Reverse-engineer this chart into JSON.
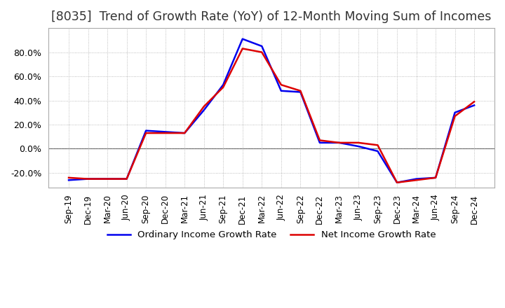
{
  "title": "[8035]  Trend of Growth Rate (YoY) of 12-Month Moving Sum of Incomes",
  "title_fontsize": 12.5,
  "ylim": [
    -32,
    100
  ],
  "yticks": [
    -20.0,
    0.0,
    20.0,
    40.0,
    60.0,
    80.0
  ],
  "background_color": "#ffffff",
  "grid_color": "#aaaaaa",
  "ordinary_color": "#0000ee",
  "net_color": "#dd0000",
  "x_labels": [
    "Sep-19",
    "Dec-19",
    "Mar-20",
    "Jun-20",
    "Sep-20",
    "Dec-20",
    "Mar-21",
    "Jun-21",
    "Sep-21",
    "Dec-21",
    "Mar-22",
    "Jun-22",
    "Sep-22",
    "Dec-22",
    "Mar-23",
    "Jun-23",
    "Sep-23",
    "Dec-23",
    "Mar-24",
    "Jun-24",
    "Sep-24",
    "Dec-24"
  ],
  "ordinary_income": [
    -26,
    -25,
    -25,
    -25,
    15,
    14,
    13,
    32,
    53,
    91,
    85,
    48,
    47,
    5,
    5,
    2,
    -2,
    -28,
    -25,
    -24,
    30,
    36
  ],
  "net_income": [
    -24,
    -25,
    -25,
    -25,
    13,
    13,
    13,
    35,
    51,
    83,
    80,
    53,
    48,
    7,
    5,
    5,
    3,
    -28,
    -26,
    -24,
    27,
    39
  ]
}
